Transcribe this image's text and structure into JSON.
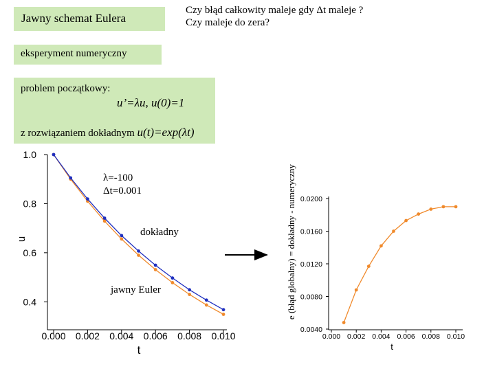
{
  "title": "Jawny schemat Eulera",
  "question_line1": "Czy błąd całkowity maleje gdy Δt maleje ?",
  "question_line2": "Czy maleje do zera?",
  "experiment_label": "eksperyment numeryczny",
  "problem_label": "problem początkowy:",
  "equation": "u’=λu,  u(0)=1",
  "solution_prefix": "z rozwiązaniem dokładnym ",
  "solution_formula": "u(t)=exp(λt)",
  "annotation_lambda": "λ=-100",
  "annotation_dt": "Δt=0.001",
  "label_exact": "dokładny",
  "label_euler": "jawny Euler",
  "colors": {
    "green_box": "#cfe9b8",
    "exact": "#1f2fbf",
    "euler": "#f08a2c"
  },
  "chart_data": [
    {
      "type": "line",
      "x": [
        0.0,
        0.001,
        0.002,
        0.003,
        0.004,
        0.005,
        0.006,
        0.007,
        0.008,
        0.009,
        0.01
      ],
      "series": [
        {
          "name": "dokładny",
          "values": [
            1.0,
            0.905,
            0.819,
            0.741,
            0.67,
            0.607,
            0.549,
            0.497,
            0.449,
            0.407,
            0.368
          ]
        },
        {
          "name": "jawny Euler",
          "values": [
            1.0,
            0.9,
            0.81,
            0.729,
            0.656,
            0.59,
            0.531,
            0.478,
            0.43,
            0.387,
            0.349
          ]
        }
      ],
      "xlabel": "t",
      "ylabel": "u",
      "xlim": [
        0.0,
        0.01
      ],
      "ylim": [
        0.3,
        1.0
      ],
      "xticks": [
        "0.000",
        "0.002",
        "0.004",
        "0.006",
        "0.008",
        "0.010"
      ],
      "yticks": [
        "1.0",
        "0.8",
        "0.6",
        "0.4"
      ]
    },
    {
      "type": "line",
      "x": [
        0.001,
        0.002,
        0.003,
        0.004,
        0.005,
        0.006,
        0.007,
        0.008,
        0.009,
        0.01
      ],
      "series": [
        {
          "values": [
            0.0048,
            0.0088,
            0.0117,
            0.0142,
            0.016,
            0.0173,
            0.0181,
            0.0187,
            0.019,
            0.019
          ]
        }
      ],
      "xlabel": "t",
      "ylabel": "e (błąd globalny) = dokładny - numeryczny",
      "xlim": [
        0.0,
        0.01
      ],
      "ylim": [
        0.004,
        0.021
      ],
      "xticks": [
        "0.000",
        "0.002",
        "0.004",
        "0.006",
        "0.008",
        "0.010"
      ],
      "yticks": [
        "0.0200",
        "0.0160",
        "0.0120",
        "0.0080",
        "0.0040"
      ]
    }
  ]
}
